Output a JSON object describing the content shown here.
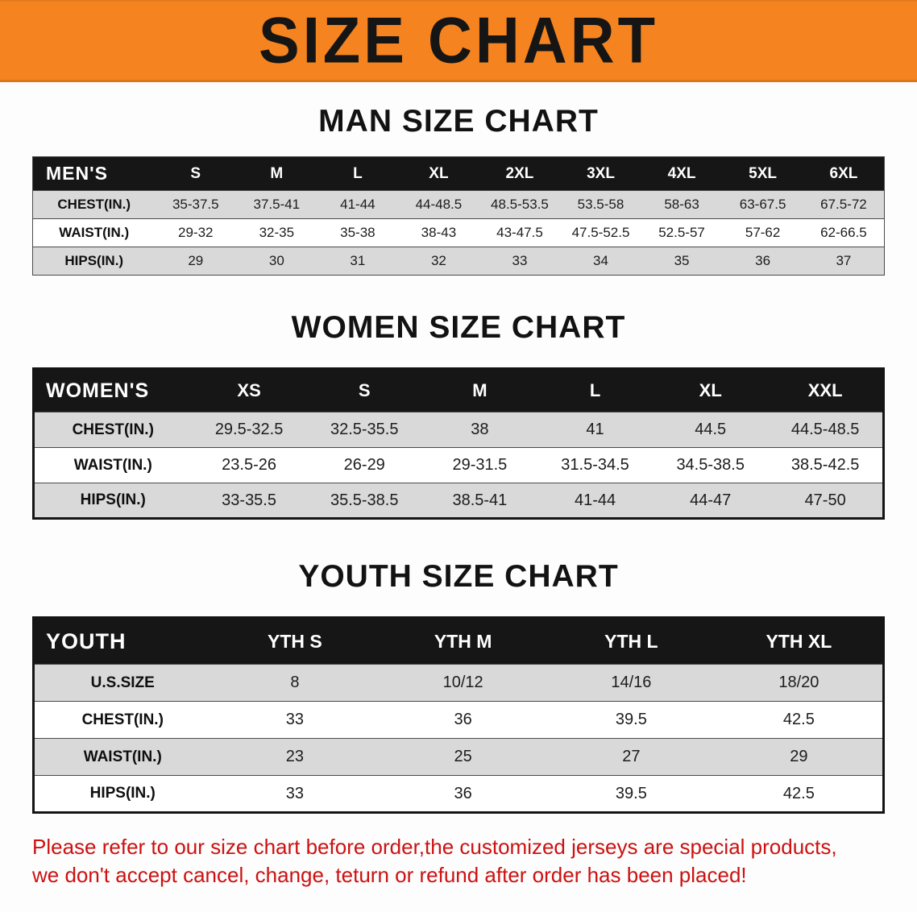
{
  "banner": {
    "title": "SIZE CHART",
    "bg_color": "#f5831f",
    "text_color": "#151515"
  },
  "colors": {
    "table_header_bg": "#161616",
    "table_header_text": "#ffffff",
    "row_stripe": "#d9d9d9",
    "disclaimer_text": "#cc1111"
  },
  "sections": [
    {
      "heading": "MAN SIZE CHART",
      "table": {
        "header": [
          "MEN'S",
          "S",
          "M",
          "L",
          "XL",
          "2XL",
          "3XL",
          "4XL",
          "5XL",
          "6XL"
        ],
        "rows": [
          {
            "label": "CHEST(IN.)",
            "values": [
              "35-37.5",
              "37.5-41",
              "41-44",
              "44-48.5",
              "48.5-53.5",
              "53.5-58",
              "58-63",
              "63-67.5",
              "67.5-72"
            ]
          },
          {
            "label": "WAIST(IN.)",
            "values": [
              "29-32",
              "32-35",
              "35-38",
              "38-43",
              "43-47.5",
              "47.5-52.5",
              "52.5-57",
              "57-62",
              "62-66.5"
            ]
          },
          {
            "label": "HIPS(IN.)",
            "values": [
              "29",
              "30",
              "31",
              "32",
              "33",
              "34",
              "35",
              "36",
              "37"
            ]
          }
        ]
      }
    },
    {
      "heading": "WOMEN SIZE CHART",
      "table": {
        "header": [
          "WOMEN'S",
          "XS",
          "S",
          "M",
          "L",
          "XL",
          "XXL"
        ],
        "rows": [
          {
            "label": "CHEST(IN.)",
            "values": [
              "29.5-32.5",
              "32.5-35.5",
              "38",
              "41",
              "44.5",
              "44.5-48.5"
            ]
          },
          {
            "label": "WAIST(IN.)",
            "values": [
              "23.5-26",
              "26-29",
              "29-31.5",
              "31.5-34.5",
              "34.5-38.5",
              "38.5-42.5"
            ]
          },
          {
            "label": "HIPS(IN.)",
            "values": [
              "33-35.5",
              "35.5-38.5",
              "38.5-41",
              "41-44",
              "44-47",
              "47-50"
            ]
          }
        ]
      }
    },
    {
      "heading": "YOUTH SIZE CHART",
      "table": {
        "header": [
          "YOUTH",
          "YTH S",
          "YTH M",
          "YTH L",
          "YTH XL"
        ],
        "rows": [
          {
            "label": "U.S.SIZE",
            "values": [
              "8",
              "10/12",
              "14/16",
              "18/20"
            ]
          },
          {
            "label": "CHEST(IN.)",
            "values": [
              "33",
              "36",
              "39.5",
              "42.5"
            ]
          },
          {
            "label": "WAIST(IN.)",
            "values": [
              "23",
              "25",
              "27",
              "29"
            ]
          },
          {
            "label": "HIPS(IN.)",
            "values": [
              "33",
              "36",
              "39.5",
              "42.5"
            ]
          }
        ]
      }
    }
  ],
  "disclaimer": {
    "line1": "Please refer to our size chart before order,the customized jerseys are special products,",
    "line2": "we don't accept cancel, change, teturn or refund after order has been placed!"
  }
}
